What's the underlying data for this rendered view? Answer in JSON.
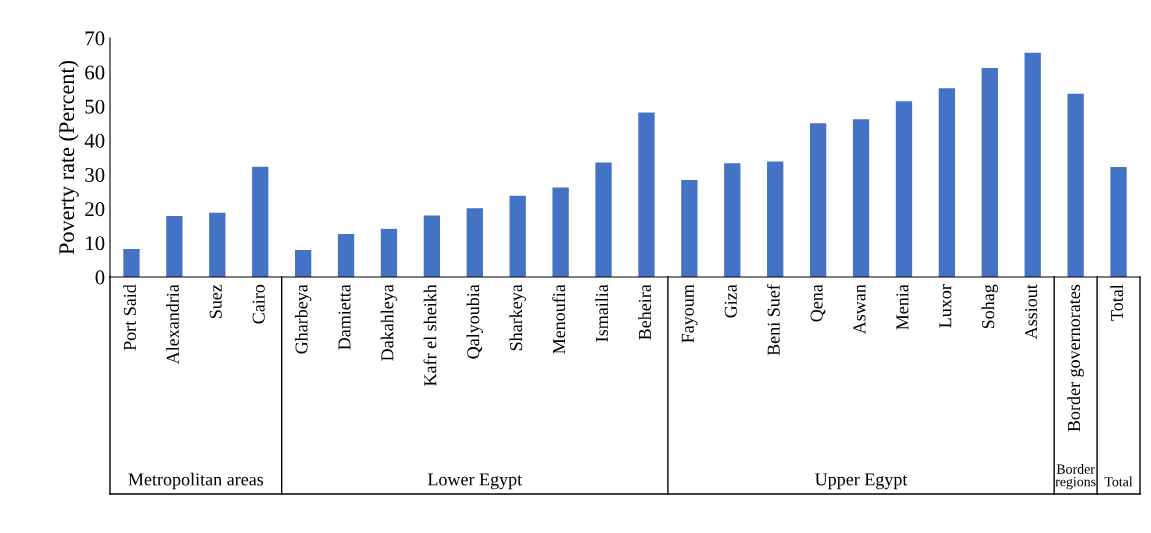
{
  "chart_data": {
    "type": "bar",
    "ylabel": "Poverty rate (Percent)",
    "categories": [
      "Port Said",
      "Alexandria",
      "Suez",
      "Cairo",
      "Gharbeya",
      "Damietta",
      "Dakahleya",
      "Kafr el sheikh",
      "Qalyoubia",
      "Sharkeya",
      "Menoufia",
      "Ismailia",
      "Beheira",
      "Fayoum",
      "Giza",
      "Beni Suef",
      "Qena",
      "Aswan",
      "Menia",
      "Luxor",
      "Sohag",
      "Assiout",
      "Border governorates",
      "Total"
    ],
    "values": [
      8.2,
      17.9,
      18.8,
      32.3,
      7.9,
      12.6,
      14.1,
      18.0,
      20.1,
      23.8,
      26.2,
      33.5,
      48.2,
      28.4,
      33.3,
      33.8,
      45.0,
      46.2,
      51.5,
      55.3,
      61.2,
      65.7,
      53.7,
      32.2
    ],
    "color": "#4472c4",
    "ylim": [
      0,
      70
    ],
    "yticks": [
      0,
      10,
      20,
      30,
      40,
      50,
      60,
      70
    ],
    "grid": false,
    "annotations": [
      "Metropolitan areas",
      "Lower Egypt",
      "Upper Egypt",
      "Border regions",
      "Total"
    ]
  }
}
